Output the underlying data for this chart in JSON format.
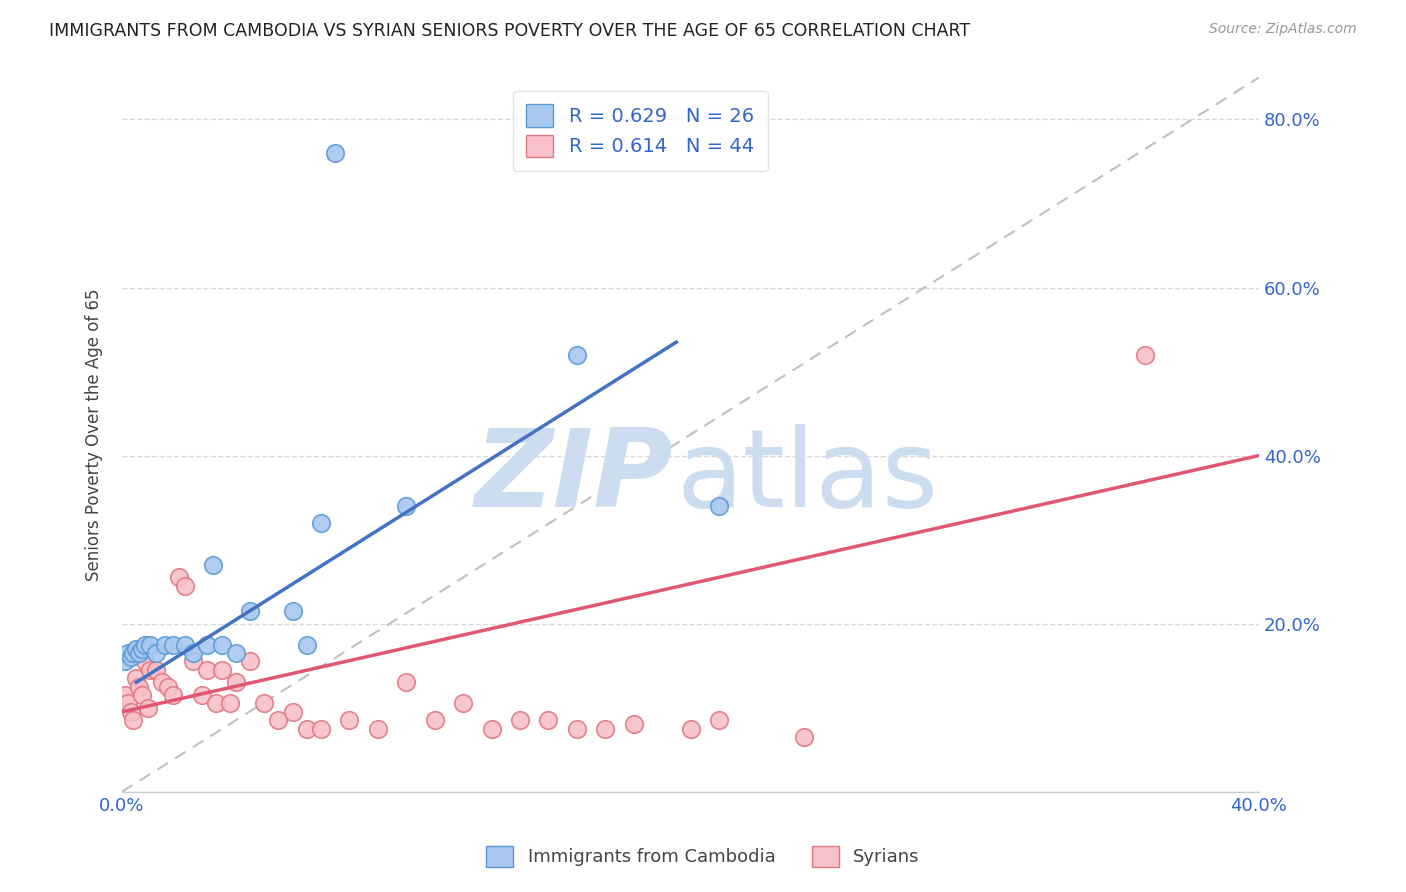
{
  "title": "IMMIGRANTS FROM CAMBODIA VS SYRIAN SENIORS POVERTY OVER THE AGE OF 65 CORRELATION CHART",
  "source": "Source: ZipAtlas.com",
  "ylabel": "Seniors Poverty Over the Age of 65",
  "xlim": [
    0.0,
    0.4
  ],
  "ylim": [
    0.0,
    0.85
  ],
  "cambodia_color": "#a8c8f0",
  "cambodia_edge_color": "#5b9bd5",
  "syrian_color": "#f8c0c8",
  "syrian_edge_color": "#e07880",
  "cambodia_line_color": "#4472c4",
  "syrian_line_color": "#e05870",
  "diagonal_color": "#c0c0c0",
  "R_cambodia": 0.629,
  "N_cambodia": 26,
  "R_syrian": 0.614,
  "N_syrian": 44,
  "cambodia_scatter_x": [
    0.001,
    0.002,
    0.003,
    0.004,
    0.005,
    0.006,
    0.007,
    0.008,
    0.01,
    0.012,
    0.015,
    0.018,
    0.022,
    0.025,
    0.03,
    0.032,
    0.035,
    0.04,
    0.045,
    0.06,
    0.065,
    0.07,
    0.1,
    0.16,
    0.21,
    0.075
  ],
  "cambodia_scatter_y": [
    0.155,
    0.165,
    0.16,
    0.165,
    0.17,
    0.165,
    0.17,
    0.175,
    0.175,
    0.165,
    0.175,
    0.175,
    0.175,
    0.165,
    0.175,
    0.27,
    0.175,
    0.165,
    0.215,
    0.215,
    0.175,
    0.32,
    0.34,
    0.52,
    0.34,
    0.76
  ],
  "syrian_scatter_x": [
    0.001,
    0.002,
    0.003,
    0.004,
    0.005,
    0.006,
    0.007,
    0.008,
    0.009,
    0.01,
    0.012,
    0.014,
    0.016,
    0.018,
    0.02,
    0.022,
    0.025,
    0.028,
    0.03,
    0.033,
    0.035,
    0.038,
    0.04,
    0.045,
    0.05,
    0.055,
    0.06,
    0.065,
    0.07,
    0.08,
    0.09,
    0.1,
    0.11,
    0.12,
    0.13,
    0.14,
    0.15,
    0.16,
    0.17,
    0.18,
    0.2,
    0.21,
    0.24,
    0.36
  ],
  "syrian_scatter_y": [
    0.115,
    0.105,
    0.095,
    0.085,
    0.135,
    0.125,
    0.115,
    0.155,
    0.1,
    0.145,
    0.145,
    0.13,
    0.125,
    0.115,
    0.255,
    0.245,
    0.155,
    0.115,
    0.145,
    0.105,
    0.145,
    0.105,
    0.13,
    0.155,
    0.105,
    0.085,
    0.095,
    0.075,
    0.075,
    0.085,
    0.075,
    0.13,
    0.085,
    0.105,
    0.075,
    0.085,
    0.085,
    0.075,
    0.075,
    0.08,
    0.075,
    0.085,
    0.065,
    0.52
  ],
  "background_color": "#ffffff",
  "grid_color": "#d8d8d8",
  "watermark_zip_color": "#ccddf0",
  "watermark_atlas_color": "#ccddf0",
  "legend_labels": [
    "Immigrants from Cambodia",
    "Syrians"
  ],
  "camb_line_x0": 0.005,
  "camb_line_y0": 0.13,
  "camb_line_x1": 0.195,
  "camb_line_y1": 0.535,
  "syr_line_x0": 0.0,
  "syr_line_y0": 0.095,
  "syr_line_x1": 0.4,
  "syr_line_y1": 0.4
}
